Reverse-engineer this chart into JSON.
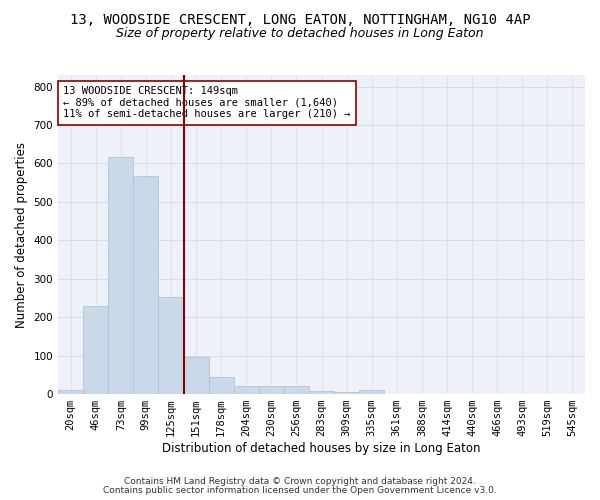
{
  "title1": "13, WOODSIDE CRESCENT, LONG EATON, NOTTINGHAM, NG10 4AP",
  "title2": "Size of property relative to detached houses in Long Eaton",
  "xlabel": "Distribution of detached houses by size in Long Eaton",
  "ylabel": "Number of detached properties",
  "bar_labels": [
    "20sqm",
    "46sqm",
    "73sqm",
    "99sqm",
    "125sqm",
    "151sqm",
    "178sqm",
    "204sqm",
    "230sqm",
    "256sqm",
    "283sqm",
    "309sqm",
    "335sqm",
    "361sqm",
    "388sqm",
    "414sqm",
    "440sqm",
    "466sqm",
    "493sqm",
    "519sqm",
    "545sqm"
  ],
  "bar_values": [
    10,
    228,
    617,
    566,
    253,
    96,
    44,
    21,
    21,
    20,
    9,
    5,
    10,
    0,
    0,
    0,
    0,
    0,
    0,
    0,
    0
  ],
  "bar_color": "#c9d9e8",
  "bar_edgecolor": "#a8bfcf",
  "vline_x": 4.5,
  "vline_color": "#8b0000",
  "annotation_line1": "13 WOODSIDE CRESCENT: 149sqm",
  "annotation_line2": "← 89% of detached houses are smaller (1,640)",
  "annotation_line3": "11% of semi-detached houses are larger (210) →",
  "annotation_box_edgecolor": "#8b0000",
  "annotation_box_facecolor": "white",
  "ylim": [
    0,
    830
  ],
  "yticks": [
    0,
    100,
    200,
    300,
    400,
    500,
    600,
    700,
    800
  ],
  "grid_color": "#d4dce8",
  "bg_color": "#eef2f8",
  "footnote1": "Contains HM Land Registry data © Crown copyright and database right 2024.",
  "footnote2": "Contains public sector information licensed under the Open Government Licence v3.0.",
  "title1_fontsize": 10,
  "title2_fontsize": 9,
  "xlabel_fontsize": 8.5,
  "ylabel_fontsize": 8.5,
  "tick_fontsize": 7.5,
  "annotation_fontsize": 7.5,
  "footnote_fontsize": 6.5
}
